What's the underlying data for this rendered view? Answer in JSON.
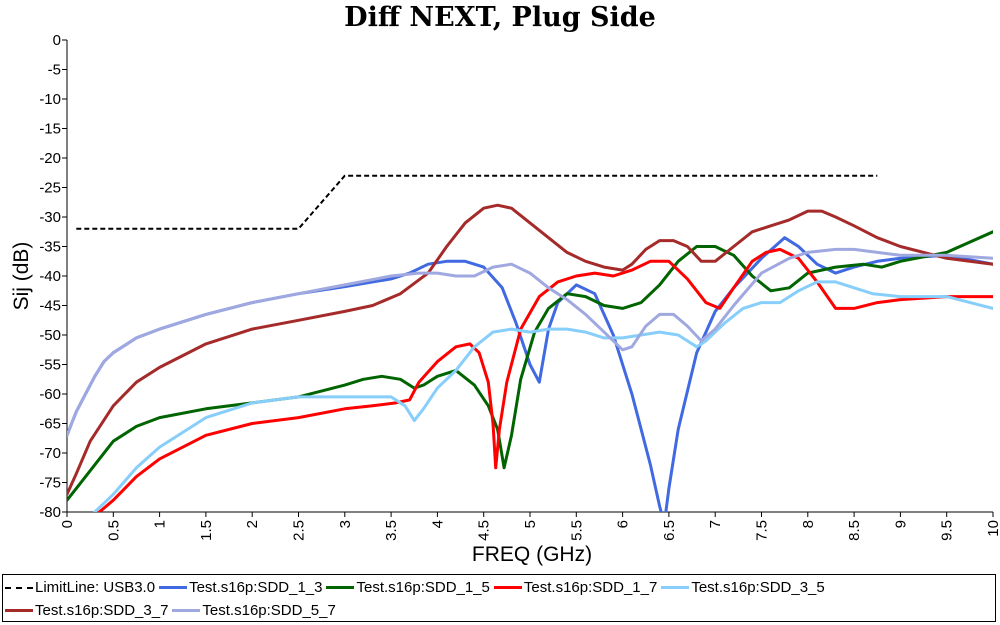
{
  "chart_data": {
    "type": "line",
    "title": "Diff NEXT, Plug Side",
    "xlabel": "FREQ (GHz)",
    "ylabel": "Sij  (dB)",
    "xlim": [
      0,
      10
    ],
    "ylim": [
      -80,
      0
    ],
    "xticks": [
      "0",
      "0.5",
      "1",
      "1.5",
      "2",
      "2.5",
      "3",
      "3.5",
      "4",
      "4.5",
      "5",
      "5.5",
      "6",
      "6.5",
      "7",
      "7.5",
      "8",
      "8.5",
      "9",
      "9.5",
      "10"
    ],
    "yticks": [
      "0",
      "-5",
      "-10",
      "-15",
      "-20",
      "-25",
      "-30",
      "-35",
      "-40",
      "-45",
      "-50",
      "-55",
      "-60",
      "-65",
      "-70",
      "-75",
      "-80"
    ],
    "grid": false,
    "legend_position": "bottom",
    "series": [
      {
        "name": "LimitLine: USB3.0",
        "color": "#000000",
        "dashed": true,
        "x": [
          0.1,
          2.5,
          3.0,
          8.75
        ],
        "y": [
          -32,
          -32,
          -23,
          -23
        ]
      },
      {
        "name": "Test.s16p:SDD_1_3",
        "color": "#4169e1",
        "x": [
          0,
          0.05,
          0.1,
          0.2,
          0.3,
          0.4,
          0.5,
          0.75,
          1.0,
          1.5,
          2.0,
          2.5,
          3.0,
          3.5,
          3.7,
          3.9,
          4.1,
          4.3,
          4.5,
          4.7,
          4.85,
          5.0,
          5.1,
          5.2,
          5.3,
          5.5,
          5.7,
          5.9,
          6.1,
          6.3,
          6.4,
          6.45,
          6.5,
          6.6,
          6.8,
          7.0,
          7.2,
          7.5,
          7.75,
          7.9,
          8.1,
          8.3,
          8.5,
          8.75,
          9.0,
          9.5,
          10.0
        ],
        "y": [
          -67,
          -65,
          -63,
          -60,
          -57,
          -54.5,
          -53,
          -50.5,
          -49,
          -46.5,
          -44.5,
          -43,
          -41.8,
          -40.5,
          -39.5,
          -38,
          -37.5,
          -37.5,
          -38.5,
          -42,
          -48,
          -55,
          -58,
          -49,
          -44.5,
          -41.5,
          -43,
          -50,
          -60,
          -72,
          -79,
          -82,
          -76,
          -66,
          -53,
          -46,
          -42,
          -37,
          -33.5,
          -35,
          -38,
          -39.5,
          -38.5,
          -37.5,
          -37,
          -36.5,
          -38
        ]
      },
      {
        "name": "Test.s16p:SDD_1_5",
        "color": "#006400",
        "x": [
          0,
          0.1,
          0.25,
          0.5,
          0.75,
          1.0,
          1.5,
          2.0,
          2.5,
          3.0,
          3.2,
          3.4,
          3.6,
          3.75,
          3.85,
          4.0,
          4.2,
          4.4,
          4.55,
          4.65,
          4.72,
          4.8,
          4.9,
          5.05,
          5.2,
          5.4,
          5.6,
          5.8,
          6.0,
          6.2,
          6.4,
          6.6,
          6.8,
          7.0,
          7.2,
          7.4,
          7.6,
          7.8,
          8.0,
          8.3,
          8.6,
          8.8,
          9.0,
          9.5,
          10.0
        ],
        "y": [
          -78,
          -76,
          -73,
          -68,
          -65.5,
          -64,
          -62.5,
          -61.5,
          -60.5,
          -58.5,
          -57.5,
          -57,
          -57.5,
          -59,
          -58.5,
          -57,
          -56,
          -58.5,
          -62,
          -66,
          -72.5,
          -67,
          -57.5,
          -49.5,
          -45.5,
          -43,
          -43.5,
          -45,
          -45.5,
          -44.5,
          -41.5,
          -37.5,
          -35,
          -35,
          -36.5,
          -40,
          -42.5,
          -42,
          -39.5,
          -38.5,
          -38,
          -38.5,
          -37.5,
          -36,
          -32.5
        ]
      },
      {
        "name": "Test.s16p:SDD_1_7",
        "color": "#ff0000",
        "x": [
          0.35,
          0.5,
          0.75,
          1.0,
          1.5,
          2.0,
          2.5,
          3.0,
          3.3,
          3.55,
          3.7,
          3.8,
          4.0,
          4.2,
          4.35,
          4.45,
          4.55,
          4.6,
          4.63,
          4.67,
          4.75,
          4.9,
          5.1,
          5.3,
          5.5,
          5.7,
          5.9,
          6.1,
          6.3,
          6.5,
          6.7,
          6.9,
          7.05,
          7.2,
          7.4,
          7.55,
          7.7,
          7.9,
          8.1,
          8.3,
          8.5,
          8.75,
          9.0,
          9.5,
          10.0
        ],
        "y": [
          -80,
          -78,
          -74,
          -71,
          -67,
          -65,
          -64,
          -62.5,
          -62,
          -61.5,
          -61,
          -58,
          -54.5,
          -52,
          -51.5,
          -53,
          -58,
          -65,
          -72.5,
          -66,
          -58,
          -49,
          -43.5,
          -41,
          -40,
          -39.5,
          -40,
          -39,
          -37.5,
          -37.5,
          -40.5,
          -44.5,
          -45.5,
          -42,
          -37.5,
          -36,
          -35.5,
          -37,
          -41,
          -45.5,
          -45.5,
          -44.5,
          -44,
          -43.5,
          -43.5
        ]
      },
      {
        "name": "Test.s16p:SDD_3_5",
        "color": "#87cefa",
        "x": [
          0.3,
          0.5,
          0.75,
          1.0,
          1.5,
          2.0,
          2.5,
          3.0,
          3.3,
          3.5,
          3.65,
          3.75,
          3.85,
          4.0,
          4.2,
          4.4,
          4.6,
          4.8,
          5.0,
          5.2,
          5.4,
          5.6,
          5.8,
          6.0,
          6.2,
          6.4,
          6.6,
          6.8,
          6.9,
          7.1,
          7.3,
          7.5,
          7.7,
          7.9,
          8.1,
          8.3,
          8.5,
          8.7,
          9.0,
          9.5,
          10.0
        ],
        "y": [
          -80,
          -77,
          -72.5,
          -69,
          -64,
          -61.5,
          -60.5,
          -60.5,
          -60.5,
          -60.5,
          -62,
          -64.5,
          -62.5,
          -59,
          -56,
          -52,
          -49.5,
          -49,
          -49.5,
          -49,
          -49,
          -49.5,
          -50.5,
          -50.5,
          -50,
          -49.5,
          -50,
          -52,
          -51,
          -48,
          -45.5,
          -44.5,
          -44.5,
          -42.5,
          -41,
          -41,
          -42,
          -43,
          -43.5,
          -43.5,
          -45.5
        ]
      },
      {
        "name": "Test.s16p:SDD_3_7",
        "color": "#a52a2a",
        "x": [
          0,
          0.1,
          0.25,
          0.5,
          0.75,
          1.0,
          1.5,
          2.0,
          2.5,
          3.0,
          3.3,
          3.6,
          3.9,
          4.1,
          4.3,
          4.5,
          4.65,
          4.8,
          5.0,
          5.2,
          5.4,
          5.6,
          5.8,
          6.0,
          6.1,
          6.25,
          6.4,
          6.55,
          6.7,
          6.85,
          7.0,
          7.2,
          7.4,
          7.6,
          7.8,
          8.0,
          8.15,
          8.3,
          8.5,
          8.75,
          9.0,
          9.5,
          10.0
        ],
        "y": [
          -77,
          -73.5,
          -68,
          -62,
          -58,
          -55.5,
          -51.5,
          -49,
          -47.5,
          -46,
          -45,
          -43,
          -39.5,
          -35,
          -31,
          -28.5,
          -28,
          -28.5,
          -31,
          -33.5,
          -36,
          -37.5,
          -38.5,
          -39,
          -38,
          -35.5,
          -34,
          -34,
          -35,
          -37.5,
          -37.5,
          -35,
          -32.5,
          -31.5,
          -30.5,
          -29,
          -29,
          -30,
          -31.5,
          -33.5,
          -35,
          -37,
          -38
        ]
      },
      {
        "name": "Test.s16p:SDD_5_7",
        "color": "#a0a8e0",
        "x": [
          0,
          0.05,
          0.1,
          0.2,
          0.3,
          0.4,
          0.5,
          0.75,
          1.0,
          1.5,
          2.0,
          2.5,
          3.0,
          3.5,
          3.8,
          4.0,
          4.2,
          4.4,
          4.6,
          4.8,
          5.0,
          5.2,
          5.4,
          5.6,
          5.8,
          6.0,
          6.1,
          6.25,
          6.4,
          6.55,
          6.7,
          6.85,
          7.0,
          7.2,
          7.5,
          7.8,
          8.0,
          8.3,
          8.5,
          8.75,
          9.0,
          9.5,
          10.0
        ],
        "y": [
          -67,
          -65,
          -63,
          -60,
          -57,
          -54.5,
          -53,
          -50.5,
          -49,
          -46.5,
          -44.5,
          -43,
          -41.5,
          -40,
          -39.5,
          -39.5,
          -40,
          -40,
          -38.5,
          -38,
          -39.5,
          -42,
          -44,
          -46.5,
          -49.5,
          -52.5,
          -52,
          -48.5,
          -46.5,
          -46.5,
          -48.5,
          -51,
          -49,
          -45,
          -39.5,
          -37,
          -36,
          -35.5,
          -35.5,
          -36,
          -36.5,
          -36.5,
          -37
        ]
      }
    ]
  },
  "legend_rows": [
    [
      0,
      1,
      2,
      3,
      4
    ],
    [
      5,
      6
    ]
  ]
}
